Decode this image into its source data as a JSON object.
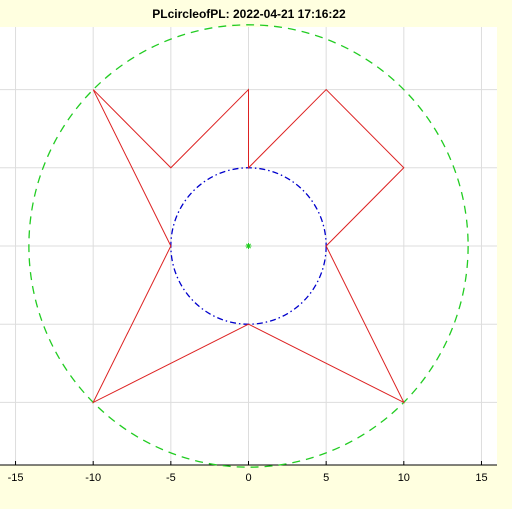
{
  "chart_data": {
    "type": "line",
    "title": "PLcircleofPL: 2022-04-21 17:16:22",
    "xlim": [
      -16,
      16
    ],
    "ylim": [
      -14,
      14
    ],
    "xticks": [
      -15,
      -10,
      -5,
      0,
      5,
      10,
      15
    ],
    "yticks": [
      -10,
      -5,
      0,
      5,
      10
    ],
    "grid": true,
    "series": [
      {
        "color": "#dd2222",
        "x": [
          -10,
          -5,
          0,
          0,
          5,
          10,
          5,
          10,
          0,
          -10,
          -5,
          -10
        ],
        "values": [
          10,
          5,
          10,
          5,
          10,
          5,
          0,
          -10,
          -5,
          -10,
          0,
          10
        ]
      }
    ],
    "circles": [
      {
        "center": [
          0,
          0
        ],
        "radius": 5,
        "color": "#0000cc",
        "style": "dashdot"
      },
      {
        "center": [
          0,
          0
        ],
        "radius": 14.14,
        "color": "#22cc22",
        "style": "dashed"
      }
    ],
    "points": {
      "x": [
        0
      ],
      "y": [
        0
      ],
      "color": "#22cc22"
    }
  }
}
